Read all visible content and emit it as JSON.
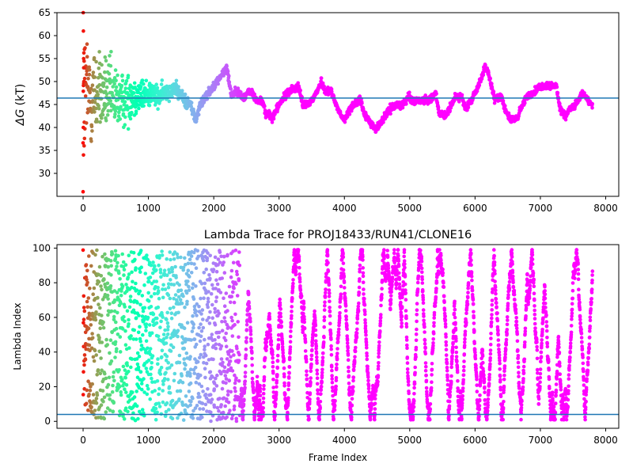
{
  "chart_data": [
    {
      "type": "scatter",
      "title": "",
      "xlabel": "",
      "ylabel_prefix": "ΔG",
      "ylabel_suffix": " (kT)",
      "xlim": [
        -400,
        8200
      ],
      "ylim": [
        25,
        65
      ],
      "xticks": [
        0,
        1000,
        2000,
        3000,
        4000,
        5000,
        6000,
        7000,
        8000
      ],
      "yticks": [
        30,
        35,
        40,
        45,
        50,
        55,
        60,
        65
      ],
      "hline": 46.4,
      "hline_color": "#1f77b4",
      "colormap": "rainbow",
      "n_frames": 7800,
      "trace_knots": [
        [
          0,
          47
        ],
        [
          100,
          47
        ],
        [
          250,
          47.5
        ],
        [
          400,
          47
        ],
        [
          550,
          46
        ],
        [
          650,
          46
        ],
        [
          750,
          47
        ],
        [
          900,
          47
        ],
        [
          1050,
          47.5
        ],
        [
          1150,
          46.5
        ],
        [
          1300,
          48
        ],
        [
          1400,
          48.5
        ],
        [
          1500,
          47
        ],
        [
          1550,
          46
        ],
        [
          1650,
          45
        ],
        [
          1720,
          41.5
        ],
        [
          1800,
          45
        ],
        [
          1880,
          47
        ],
        [
          2000,
          49
        ],
        [
          2100,
          51
        ],
        [
          2200,
          53
        ],
        [
          2270,
          47
        ],
        [
          2350,
          48
        ],
        [
          2450,
          46.5
        ],
        [
          2560,
          48
        ],
        [
          2650,
          46
        ],
        [
          2750,
          45.5
        ],
        [
          2800,
          43
        ],
        [
          2900,
          42
        ],
        [
          2960,
          44
        ],
        [
          3050,
          46
        ],
        [
          3150,
          48
        ],
        [
          3250,
          48.5
        ],
        [
          3300,
          49
        ],
        [
          3360,
          45
        ],
        [
          3450,
          45
        ],
        [
          3550,
          47
        ],
        [
          3650,
          50
        ],
        [
          3700,
          48
        ],
        [
          3800,
          48
        ],
        [
          3870,
          45
        ],
        [
          3950,
          42.5
        ],
        [
          4000,
          41.5
        ],
        [
          4100,
          44.5
        ],
        [
          4250,
          46
        ],
        [
          4300,
          43
        ],
        [
          4380,
          41.5
        ],
        [
          4480,
          39.5
        ],
        [
          4600,
          42
        ],
        [
          4700,
          44
        ],
        [
          4800,
          45
        ],
        [
          4900,
          45
        ],
        [
          4980,
          47
        ],
        [
          5050,
          45.5
        ],
        [
          5200,
          46
        ],
        [
          5300,
          46
        ],
        [
          5400,
          47.5
        ],
        [
          5450,
          43
        ],
        [
          5550,
          42.5
        ],
        [
          5650,
          45
        ],
        [
          5700,
          47
        ],
        [
          5800,
          46.5
        ],
        [
          5850,
          44
        ],
        [
          5950,
          46
        ],
        [
          6050,
          49
        ],
        [
          6150,
          53
        ],
        [
          6200,
          52
        ],
        [
          6300,
          46
        ],
        [
          6400,
          47
        ],
        [
          6460,
          44
        ],
        [
          6550,
          41.5
        ],
        [
          6650,
          42
        ],
        [
          6700,
          44
        ],
        [
          6800,
          47
        ],
        [
          6850,
          47
        ],
        [
          6950,
          48.5
        ],
        [
          7050,
          49
        ],
        [
          7150,
          49
        ],
        [
          7250,
          49
        ],
        [
          7300,
          44
        ],
        [
          7380,
          42.5
        ],
        [
          7450,
          44
        ],
        [
          7550,
          45
        ],
        [
          7650,
          47.5
        ],
        [
          7780,
          45
        ]
      ],
      "spread_knots": [
        [
          0,
          11
        ],
        [
          100,
          9
        ],
        [
          250,
          6
        ],
        [
          450,
          5
        ],
        [
          650,
          4
        ],
        [
          900,
          2.5
        ],
        [
          1200,
          1.5
        ],
        [
          1500,
          1
        ],
        [
          2000,
          0.6
        ],
        [
          7800,
          0.5
        ]
      ],
      "outliers": [
        [
          0,
          26
        ],
        [
          2,
          65
        ],
        [
          5,
          61
        ],
        [
          8,
          55
        ],
        [
          12,
          50
        ],
        [
          3,
          40
        ],
        [
          6,
          34
        ],
        [
          15,
          36
        ],
        [
          20,
          57
        ],
        [
          10,
          53
        ]
      ]
    },
    {
      "type": "scatter",
      "title": "Lambda Trace for PROJ18433/RUN41/CLONE16",
      "xlabel": "Frame Index",
      "ylabel": "Lambda Index",
      "xlim": [
        -400,
        8200
      ],
      "ylim": [
        -4,
        102
      ],
      "xticks": [
        0,
        1000,
        2000,
        3000,
        4000,
        5000,
        6000,
        7000,
        8000
      ],
      "yticks": [
        0,
        20,
        40,
        60,
        80,
        100
      ],
      "hline": 4,
      "hline_color": "#1f77b4",
      "colormap": "rainbow",
      "n_frames": 7800,
      "ymax": 99
    }
  ]
}
